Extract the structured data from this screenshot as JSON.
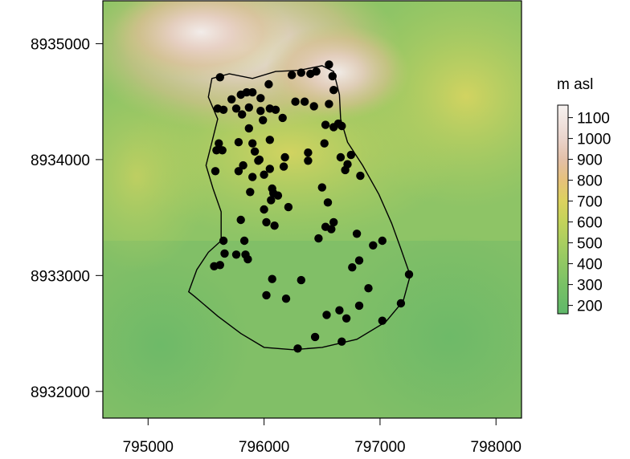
{
  "map": {
    "type": "raster-map",
    "x_ticks": [
      "795000",
      "796000",
      "797000",
      "798000"
    ],
    "y_ticks": [
      "8932000",
      "8933000",
      "8934000",
      "8935000"
    ],
    "x_tick_values": [
      795000,
      796000,
      797000,
      798000
    ],
    "y_tick_values": [
      8932000,
      8933000,
      8934000,
      8935000
    ],
    "xlim": [
      794610,
      798220
    ],
    "ylim": [
      8931770,
      8935370
    ],
    "boundary": [
      [
        795550,
        8934700
      ],
      [
        795700,
        8934740
      ],
      [
        795900,
        8934700
      ],
      [
        796100,
        8934760
      ],
      [
        796300,
        8934770
      ],
      [
        796500,
        8934810
      ],
      [
        796600,
        8934760
      ],
      [
        796650,
        8934560
      ],
      [
        796660,
        8934350
      ],
      [
        796720,
        8934150
      ],
      [
        796850,
        8933950
      ],
      [
        796990,
        8933700
      ],
      [
        797100,
        8933450
      ],
      [
        797180,
        8933230
      ],
      [
        797260,
        8933000
      ],
      [
        797200,
        8932780
      ],
      [
        797050,
        8932600
      ],
      [
        796800,
        8932450
      ],
      [
        796500,
        8932380
      ],
      [
        796250,
        8932360
      ],
      [
        796000,
        8932380
      ],
      [
        795800,
        8932500
      ],
      [
        795600,
        8932650
      ],
      [
        795400,
        8932820
      ],
      [
        795350,
        8932860
      ],
      [
        795420,
        8933050
      ],
      [
        795520,
        8933200
      ],
      [
        795630,
        8933300
      ],
      [
        795630,
        8933550
      ],
      [
        795560,
        8933750
      ],
      [
        795500,
        8933950
      ],
      [
        795550,
        8934150
      ],
      [
        795600,
        8934350
      ],
      [
        795520,
        8934540
      ],
      [
        795550,
        8934700
      ]
    ],
    "sample_points": [
      [
        795620,
        8934710
      ],
      [
        795720,
        8934520
      ],
      [
        795760,
        8934440
      ],
      [
        795800,
        8934560
      ],
      [
        795850,
        8934580
      ],
      [
        795900,
        8934580
      ],
      [
        795970,
        8934530
      ],
      [
        796040,
        8934650
      ],
      [
        796050,
        8934440
      ],
      [
        796100,
        8934430
      ],
      [
        795810,
        8934390
      ],
      [
        795870,
        8934450
      ],
      [
        795970,
        8934420
      ],
      [
        796240,
        8934730
      ],
      [
        796320,
        8934750
      ],
      [
        796400,
        8934740
      ],
      [
        796450,
        8934760
      ],
      [
        796560,
        8934820
      ],
      [
        796590,
        8934720
      ],
      [
        796600,
        8934600
      ],
      [
        796270,
        8934500
      ],
      [
        796350,
        8934500
      ],
      [
        796430,
        8934460
      ],
      [
        796560,
        8934480
      ],
      [
        796640,
        8934310
      ],
      [
        796670,
        8934290
      ],
      [
        796530,
        8934300
      ],
      [
        795600,
        8934440
      ],
      [
        795650,
        8934430
      ],
      [
        795870,
        8934270
      ],
      [
        795990,
        8934340
      ],
      [
        796160,
        8934360
      ],
      [
        796520,
        8934140
      ],
      [
        796600,
        8934280
      ],
      [
        795610,
        8934140
      ],
      [
        795590,
        8934080
      ],
      [
        795640,
        8934080
      ],
      [
        795780,
        8934150
      ],
      [
        795900,
        8934140
      ],
      [
        795920,
        8934070
      ],
      [
        796050,
        8934170
      ],
      [
        796180,
        8934020
      ],
      [
        796170,
        8933940
      ],
      [
        796380,
        8934060
      ],
      [
        796380,
        8933990
      ],
      [
        796660,
        8934020
      ],
      [
        796750,
        8934040
      ],
      [
        796720,
        8933960
      ],
      [
        796700,
        8933910
      ],
      [
        796830,
        8933860
      ],
      [
        795580,
        8933900
      ],
      [
        795780,
        8933900
      ],
      [
        795820,
        8933950
      ],
      [
        795950,
        8933990
      ],
      [
        795960,
        8934000
      ],
      [
        795900,
        8933850
      ],
      [
        796000,
        8933870
      ],
      [
        796050,
        8933920
      ],
      [
        795880,
        8933720
      ],
      [
        796070,
        8933750
      ],
      [
        796080,
        8933710
      ],
      [
        796120,
        8933690
      ],
      [
        796060,
        8933650
      ],
      [
        796000,
        8933570
      ],
      [
        796210,
        8933590
      ],
      [
        796500,
        8933760
      ],
      [
        796550,
        8933630
      ],
      [
        796600,
        8933460
      ],
      [
        796530,
        8933420
      ],
      [
        796580,
        8933400
      ],
      [
        796800,
        8933360
      ],
      [
        796470,
        8933320
      ],
      [
        795800,
        8933480
      ],
      [
        796020,
        8933460
      ],
      [
        796090,
        8933430
      ],
      [
        795650,
        8933300
      ],
      [
        795660,
        8933190
      ],
      [
        795760,
        8933180
      ],
      [
        795830,
        8933300
      ],
      [
        795840,
        8933180
      ],
      [
        795860,
        8933140
      ],
      [
        795570,
        8933080
      ],
      [
        795620,
        8933090
      ],
      [
        796940,
        8933260
      ],
      [
        797020,
        8933300
      ],
      [
        796820,
        8933130
      ],
      [
        796760,
        8933070
      ],
      [
        797250,
        8933010
      ],
      [
        796070,
        8932970
      ],
      [
        796320,
        8932960
      ],
      [
        796020,
        8932830
      ],
      [
        796190,
        8932800
      ],
      [
        796900,
        8932890
      ],
      [
        796820,
        8932740
      ],
      [
        796650,
        8932700
      ],
      [
        796540,
        8932660
      ],
      [
        796710,
        8932630
      ],
      [
        797180,
        8932760
      ],
      [
        797020,
        8932610
      ],
      [
        796440,
        8932470
      ],
      [
        796670,
        8932430
      ],
      [
        796290,
        8932370
      ]
    ]
  },
  "legend": {
    "title": "m asl",
    "ticks": [
      "200",
      "300",
      "400",
      "500",
      "600",
      "700",
      "800",
      "900",
      "1000",
      "1100"
    ],
    "tick_values": [
      200,
      300,
      400,
      500,
      600,
      700,
      800,
      900,
      1000,
      1100
    ],
    "range": [
      160,
      1160
    ],
    "color_stops": [
      {
        "value": 160,
        "color": "#5fb86a"
      },
      {
        "value": 300,
        "color": "#79c166"
      },
      {
        "value": 450,
        "color": "#9ccb62"
      },
      {
        "value": 600,
        "color": "#c3d35a"
      },
      {
        "value": 700,
        "color": "#dcd25e"
      },
      {
        "value": 800,
        "color": "#e6c17a"
      },
      {
        "value": 900,
        "color": "#e3c0a8"
      },
      {
        "value": 1000,
        "color": "#ead4cc"
      },
      {
        "value": 1160,
        "color": "#f6f2f0"
      }
    ]
  }
}
